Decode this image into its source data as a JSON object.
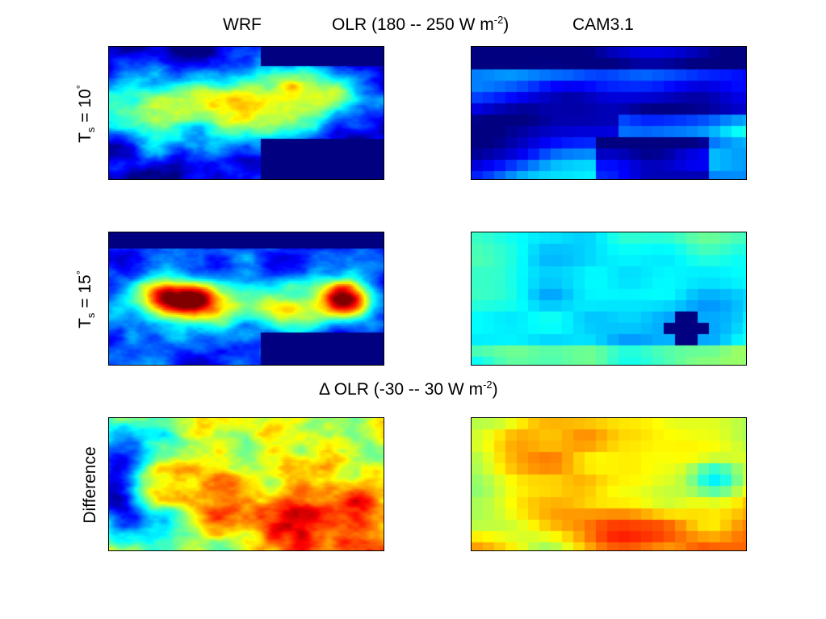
{
  "header": {
    "left_title": "WRF",
    "center_title_main": "OLR (180 -- 250 W m",
    "center_title_sup": "-2",
    "center_title_end": ")",
    "right_title": "CAM3.1"
  },
  "rows": [
    {
      "label_main": "T",
      "label_sub": "s",
      "label_mid": " = 10",
      "label_sup": "°"
    },
    {
      "label_main": "T",
      "label_sub": "s",
      "label_mid": " = 15",
      "label_sup": "°"
    },
    {
      "label_main": "Difference",
      "label_sub": "",
      "label_mid": "",
      "label_sup": ""
    }
  ],
  "difference_header": {
    "main": "Δ OLR (-30 -- 30 W m",
    "sup": "-2",
    "end": ")"
  },
  "chart_data": {
    "type": "heatmap",
    "colormap": "jet",
    "ranges": [
      {
        "quantity": "OLR",
        "min": 180,
        "max": 250,
        "unit": "W m-2"
      },
      {
        "quantity": "Δ OLR",
        "min": -30,
        "max": 30,
        "unit": "W m-2"
      }
    ],
    "columns": [
      "WRF",
      "CAM3.1"
    ],
    "rows": [
      "Ts = 10°",
      "Ts = 15°",
      "Difference"
    ]
  }
}
